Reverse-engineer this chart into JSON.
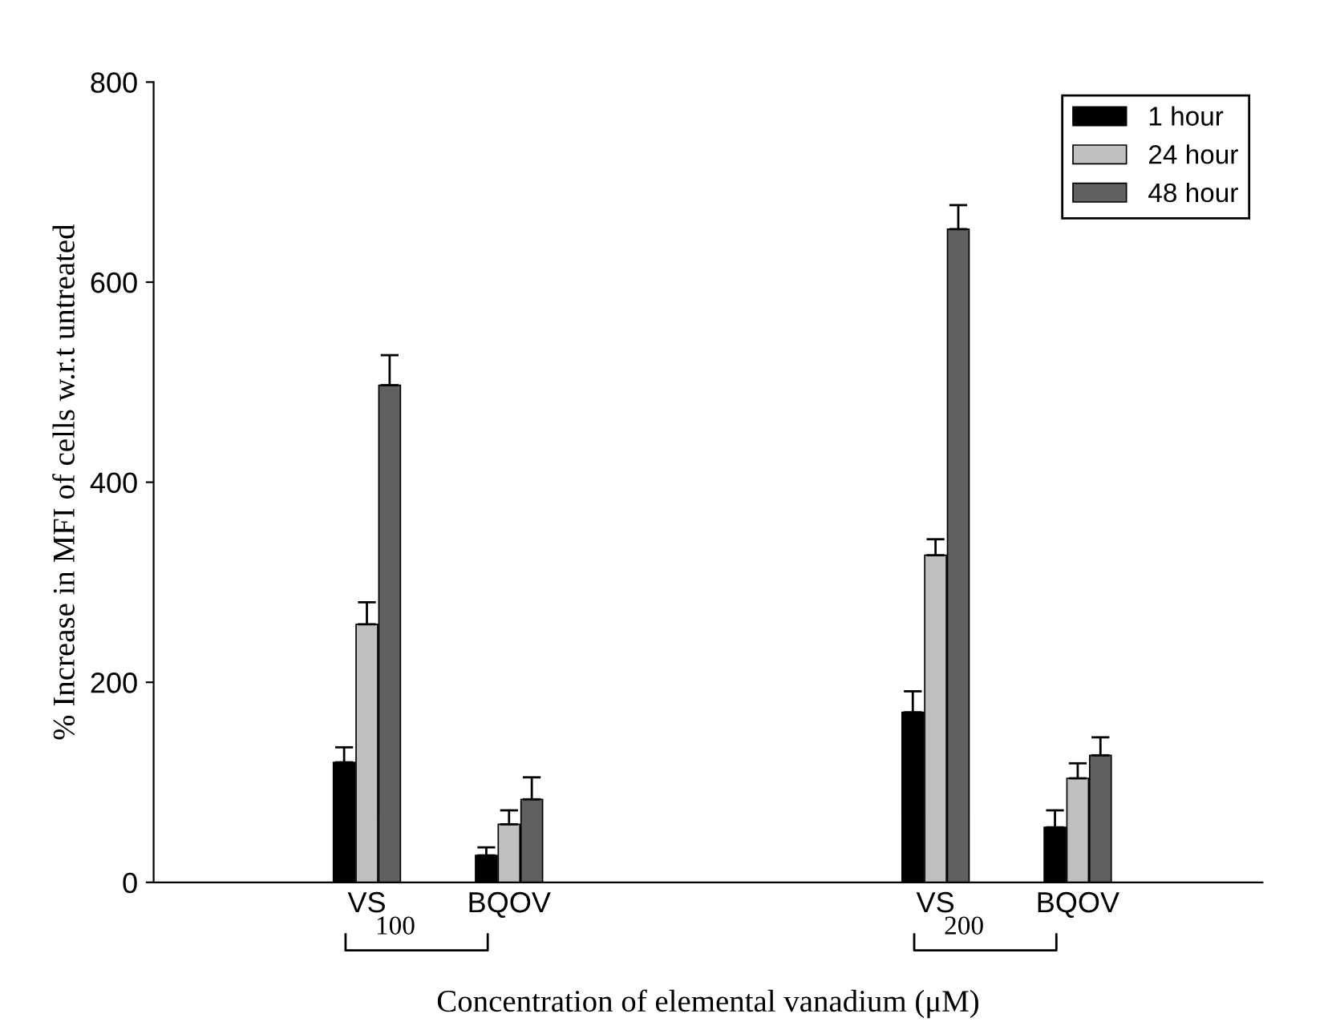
{
  "chart_data": {
    "type": "bar",
    "xlabel": "Concentration of elemental vanadium (μM)",
    "ylabel": "% Increase in MFI of cells w.r.t untreated",
    "categories": [
      "VS",
      "BQOV",
      "VS",
      "BQOV"
    ],
    "series": [
      {
        "name": "1 hour",
        "color": "#000000",
        "values": [
          120,
          27,
          170,
          55
        ],
        "errors": [
          [
            120,
            135
          ],
          [
            27,
            35
          ],
          [
            170,
            191
          ],
          [
            55,
            72
          ]
        ]
      },
      {
        "name": "24 hour",
        "color": "#c0c0c0",
        "values": [
          258,
          58,
          327,
          104
        ],
        "errors": [
          [
            258,
            280
          ],
          [
            58,
            72
          ],
          [
            327,
            343
          ],
          [
            104,
            119
          ]
        ]
      },
      {
        "name": "48 hour",
        "color": "#606060",
        "values": [
          497,
          83,
          653,
          127
        ],
        "errors": [
          [
            497,
            527
          ],
          [
            83,
            105
          ],
          [
            653,
            677
          ],
          [
            127,
            145
          ]
        ]
      }
    ],
    "ylim": [
      0,
      800
    ],
    "yticks": [
      0,
      200,
      400,
      600,
      800
    ],
    "grid": false,
    "legend": "top right",
    "annotations": [
      "100",
      "200"
    ]
  }
}
